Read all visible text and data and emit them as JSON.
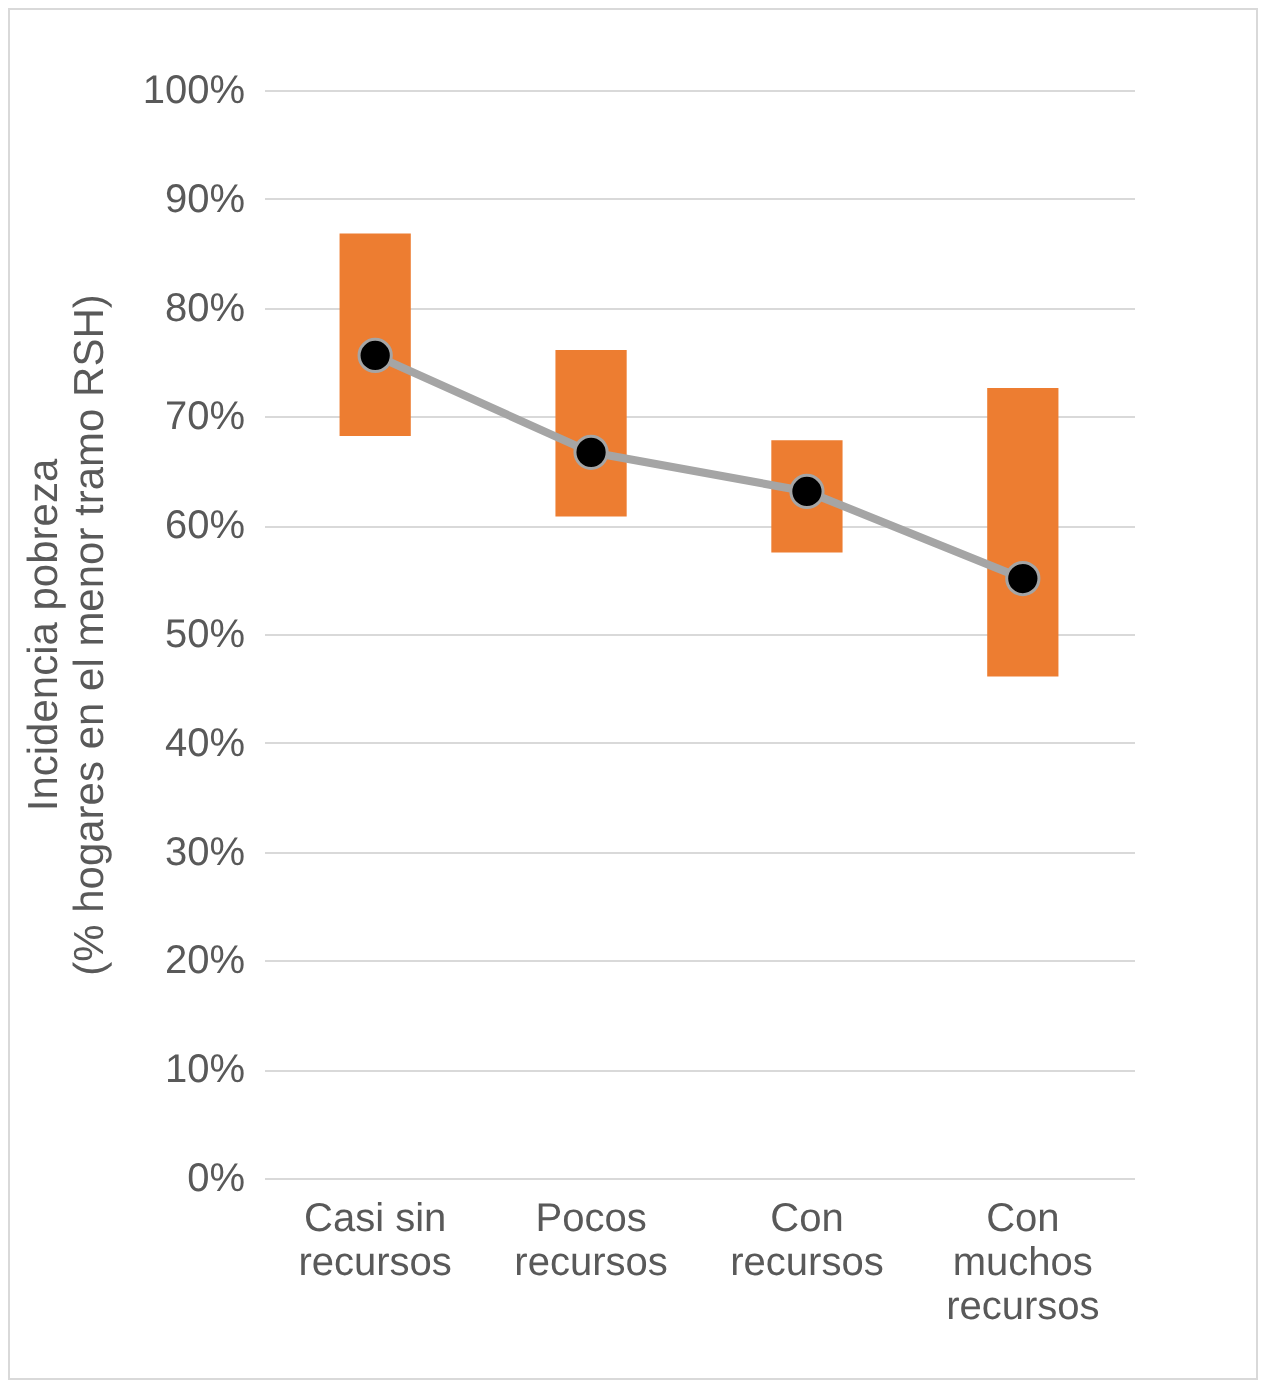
{
  "chart_data": {
    "type": "bar",
    "ylabel": "Incidencia pobreza\n(% hogares en el menor tramo RSH)",
    "categories": [
      "Casi sin recursos",
      "Pocos recursos",
      "Con recursos",
      "Con muchos recursos"
    ],
    "series": [
      {
        "color": "#ed7d31",
        "base": [
          68.2,
          60.8,
          57.5,
          46.1
        ],
        "values": [
          18.6,
          15.3,
          10.3,
          26.5
        ]
      },
      {
        "type": "line",
        "color": "#a5a5a5",
        "marker": "circle",
        "values": [
          75.6,
          66.7,
          63.1,
          55.1
        ]
      }
    ],
    "ylim": [
      0,
      100
    ],
    "yticks": [
      {
        "value": 0,
        "label": "0%"
      },
      {
        "value": 10,
        "label": "10%"
      },
      {
        "value": 20,
        "label": "20%"
      },
      {
        "value": 30,
        "label": "30%"
      },
      {
        "value": 40,
        "label": "40%"
      },
      {
        "value": 50,
        "label": "50%"
      },
      {
        "value": 60,
        "label": "60%"
      },
      {
        "value": 70,
        "label": "70%"
      },
      {
        "value": 80,
        "label": "80%"
      },
      {
        "value": 90,
        "label": "90%"
      },
      {
        "value": 100,
        "label": "100%"
      }
    ],
    "grid": "y"
  }
}
